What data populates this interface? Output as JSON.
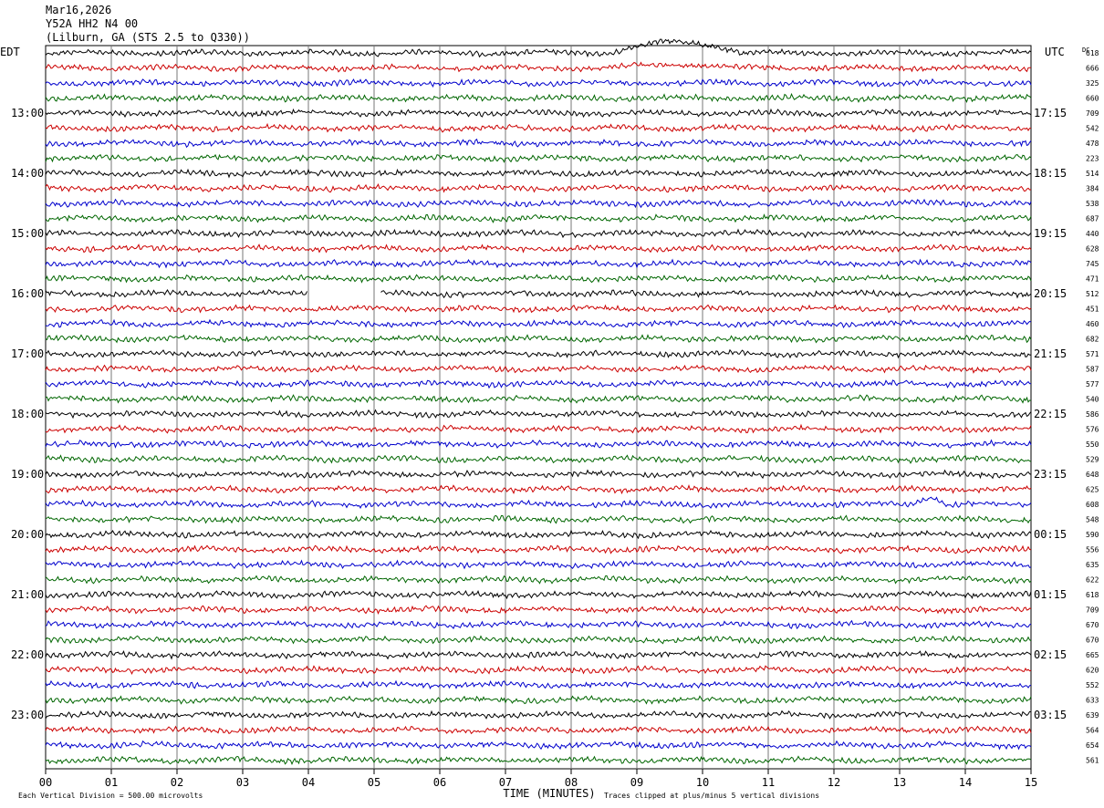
{
  "header": {
    "date": "Mar16,2026",
    "station": "Y52A HH2 N4 00",
    "location": "(Lilburn, GA (STS 2.5 to Q330))"
  },
  "axes": {
    "left_tz": "EDT",
    "right_tz": "UTC",
    "dc_label": "DC",
    "x_title": "TIME (MINUTES)",
    "x_ticks": [
      "00",
      "01",
      "02",
      "03",
      "04",
      "05",
      "06",
      "07",
      "08",
      "09",
      "10",
      "11",
      "12",
      "13",
      "14",
      "15"
    ]
  },
  "footer": {
    "scale_left": "Each Vertical Division =  500.00 microvolts",
    "scale_right": "Traces clipped at plus/minus 5 vertical divisions"
  },
  "colors": {
    "trace_cycle": [
      "#000000",
      "#cc0000",
      "#0000cc",
      "#006600"
    ],
    "grid": "#777777"
  },
  "chart_data": {
    "type": "line",
    "title": "Y52A HH2 N4 00",
    "subtitle": "Mar16,2026",
    "xlabel": "TIME (MINUTES)",
    "xlim": [
      0,
      15
    ],
    "grid": true,
    "left_hour_labels": [
      "13:00",
      "14:00",
      "15:00",
      "16:00",
      "17:00",
      "18:00",
      "19:00",
      "20:00",
      "21:00",
      "22:00",
      "23:00"
    ],
    "right_hour_labels": [
      "17:15",
      "18:15",
      "19:15",
      "20:15",
      "21:15",
      "22:15",
      "23:15",
      "00:15",
      "01:15",
      "02:15",
      "03:15"
    ],
    "label_every_n_traces": 4,
    "label_start_trace": 4,
    "dc_values": [
      618,
      666,
      325,
      660,
      709,
      542,
      478,
      223,
      514,
      384,
      538,
      687,
      440,
      628,
      745,
      471,
      512,
      451,
      460,
      682,
      571,
      587,
      577,
      540,
      586,
      576,
      550,
      529,
      648,
      625,
      608,
      548,
      590,
      556,
      635,
      622,
      618,
      709,
      670,
      670,
      665,
      620,
      552,
      633,
      639,
      564,
      654,
      561
    ],
    "events": [
      {
        "trace": 0,
        "start_min": 8.6,
        "end_min": 10.6,
        "amplitude": 12
      },
      {
        "trace": 1,
        "start_min": 8.6,
        "end_min": 10.6,
        "amplitude": 12
      },
      {
        "trace": 16,
        "gap_start_min": 4.0,
        "gap_end_min": 5.1
      },
      {
        "trace": 30,
        "start_min": 13.2,
        "end_min": 13.7,
        "amplitude": 8
      }
    ]
  }
}
